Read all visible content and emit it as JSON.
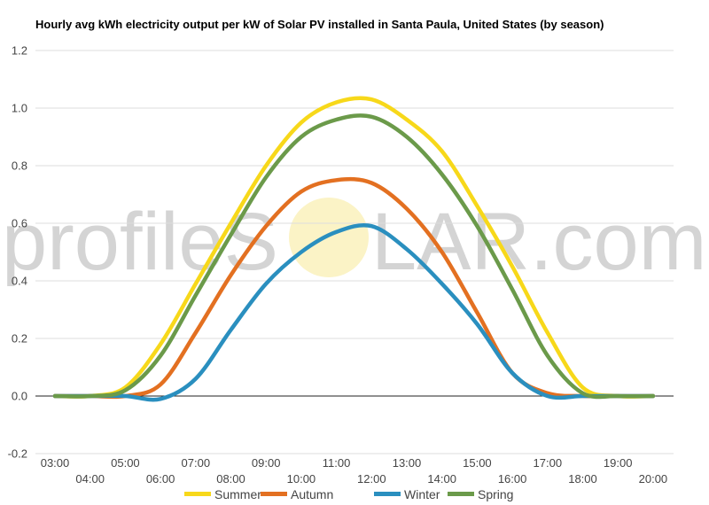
{
  "watermark": {
    "left": "profileS",
    "right": "LAR.com",
    "sun_color": "#fbf3c6"
  },
  "chart_data": {
    "type": "line",
    "title": "Hourly avg kWh electricity output per kW of Solar PV installed in Santa Paula, United States (by season)",
    "xlabel": "",
    "ylabel": "",
    "ylim": [
      -0.2,
      1.2
    ],
    "yticks": [
      "-0.2",
      "0.0",
      "0.2",
      "0.4",
      "0.6",
      "0.8",
      "1.0",
      "1.2"
    ],
    "categories": [
      "03:00",
      "04:00",
      "05:00",
      "06:00",
      "07:00",
      "08:00",
      "09:00",
      "10:00",
      "11:00",
      "12:00",
      "13:00",
      "14:00",
      "15:00",
      "16:00",
      "17:00",
      "18:00",
      "19:00",
      "20:00"
    ],
    "grid": true,
    "legend_position": "bottom",
    "series": [
      {
        "name": "Summer",
        "color": "#f7d81a",
        "values": [
          0,
          0,
          0.03,
          0.18,
          0.39,
          0.6,
          0.8,
          0.95,
          1.02,
          1.03,
          0.96,
          0.85,
          0.66,
          0.45,
          0.22,
          0.03,
          0,
          0
        ]
      },
      {
        "name": "Autumn",
        "color": "#e37021",
        "values": [
          0,
          0,
          0,
          0.04,
          0.22,
          0.42,
          0.59,
          0.71,
          0.75,
          0.74,
          0.65,
          0.5,
          0.29,
          0.08,
          0.01,
          0,
          0,
          0
        ]
      },
      {
        "name": "Winter",
        "color": "#2a8fbf",
        "values": [
          0,
          0,
          0,
          -0.01,
          0.06,
          0.23,
          0.39,
          0.5,
          0.57,
          0.59,
          0.51,
          0.39,
          0.25,
          0.08,
          0,
          0,
          0,
          0
        ]
      },
      {
        "name": "Spring",
        "color": "#6b9a4a",
        "values": [
          0,
          0,
          0.02,
          0.14,
          0.35,
          0.56,
          0.76,
          0.9,
          0.96,
          0.97,
          0.9,
          0.77,
          0.59,
          0.37,
          0.14,
          0.01,
          0,
          0
        ]
      }
    ]
  }
}
